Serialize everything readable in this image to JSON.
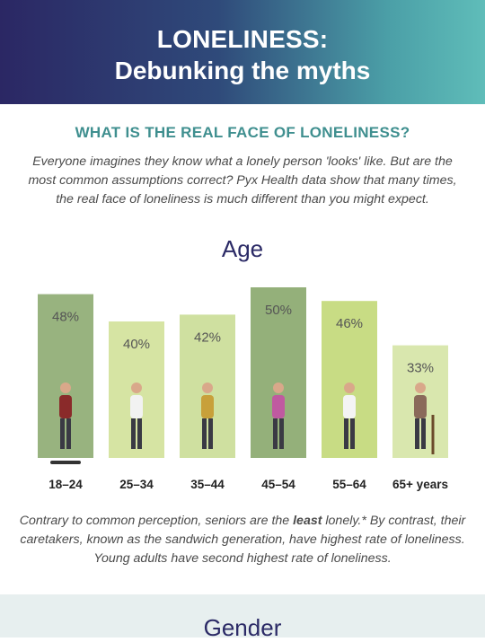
{
  "header": {
    "title_line1": "LONELINESS:",
    "title_line2": "Debunking the myths"
  },
  "section": {
    "heading": "WHAT IS THE REAL FACE OF LONELINESS?",
    "intro": "Everyone imagines they know what a lonely person 'looks' like. But are the most common assumptions correct? Pyx Health data show that many times, the real face of loneliness is much different than you might expect."
  },
  "chart_data": {
    "type": "bar",
    "title": "Age",
    "categories": [
      "18–24",
      "25–34",
      "35–44",
      "45–54",
      "55–64",
      "65+ years"
    ],
    "values": [
      48,
      40,
      42,
      50,
      46,
      33
    ],
    "value_labels": [
      "48%",
      "40%",
      "42%",
      "50%",
      "46%",
      "33%"
    ],
    "unit": "%",
    "ylim": [
      0,
      50
    ],
    "grid": false,
    "bar_colors": [
      "#98b37f",
      "#d6e4a3",
      "#cfe0a0",
      "#94b07a",
      "#c8dc84",
      "#d9e7ae"
    ]
  },
  "caption": {
    "before": "Contrary to common perception, seniors are the ",
    "bold": "least",
    "after": " lonely.* By contrast, their caretakers, known as the sandwich generation, have highest rate of loneliness. Young adults have second highest rate of loneliness."
  },
  "next_section": {
    "title": "Gender"
  }
}
